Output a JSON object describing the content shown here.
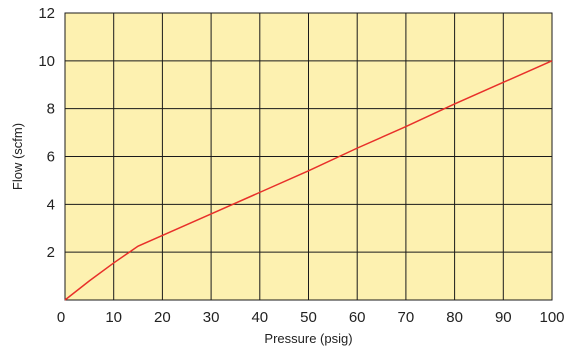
{
  "chart_data": {
    "type": "line",
    "title": "",
    "xlabel": "Pressure (psig)",
    "ylabel": "Flow (scfm)",
    "xlim": [
      0,
      100
    ],
    "ylim": [
      0,
      12
    ],
    "x_ticks": [
      0,
      10,
      20,
      30,
      40,
      50,
      60,
      70,
      80,
      90,
      100
    ],
    "y_ticks": [
      2,
      4,
      6,
      8,
      10,
      12
    ],
    "x_tick_labels": [
      "0",
      "10",
      "20",
      "30",
      "40",
      "50",
      "60",
      "70",
      "80",
      "90",
      "100"
    ],
    "y_tick_labels": [
      "2",
      "4",
      "6",
      "8",
      "10",
      "12"
    ],
    "grid": true,
    "legend": "none",
    "series": [
      {
        "x": [
          0,
          5,
          10,
          15,
          20,
          30,
          40,
          50,
          60,
          70,
          80,
          90,
          100
        ],
        "y": [
          0,
          0.8,
          1.55,
          2.25,
          2.7,
          3.6,
          4.5,
          5.4,
          6.35,
          7.25,
          8.2,
          9.1,
          10.0
        ]
      }
    ]
  },
  "colors": {
    "plot_background": "#fdf1b0",
    "grid": "#1a1a1a",
    "line": "#e8302a",
    "text": "#222222"
  }
}
